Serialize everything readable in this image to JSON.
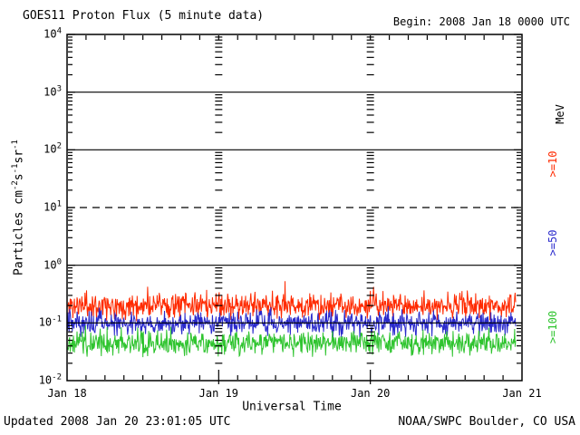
{
  "header": {
    "title": "GOES11 Proton Flux (5 minute data)",
    "begin_label": "Begin: 2008 Jan 18 0000 UTC"
  },
  "footer": {
    "updated": "Updated 2008 Jan 20 23:01:05 UTC",
    "credit": "NOAA/SWPC Boulder, CO USA"
  },
  "chart_data": {
    "type": "line",
    "scale": "log-y",
    "title": "GOES11 Proton Flux (5 minute data)",
    "subtitle": "Begin: 2008 Jan 18 0000 UTC",
    "xlabel": "Universal Time",
    "ylabel": "Particles cm-2 s-1 sr-1",
    "ylabel_parts": [
      [
        "Particles  cm",
        "-2"
      ],
      [
        "s",
        "-1"
      ],
      [
        "sr",
        "-1"
      ]
    ],
    "x_tick_labels": [
      "Jan 18",
      "Jan 19",
      "Jan 20",
      "Jan 21"
    ],
    "x_span_days": 3,
    "x_minor_ticks_per_day": 8,
    "x_minor_tick_hours": 3,
    "ylim_log10": [
      -2,
      4
    ],
    "y_tick_exponents": [
      4,
      3,
      2,
      1,
      0,
      -1,
      -2
    ],
    "solid_hlines_log10": [
      3,
      2,
      0,
      -1
    ],
    "dashed_hlines_log10": [
      1
    ],
    "day_boundary_dash_columns": [
      "Jan 19",
      "Jan 20"
    ],
    "cadence_minutes": 5,
    "data_end_hours": 71,
    "legend_unit": "MeV",
    "axis_color": "#000000",
    "series": [
      {
        "name": "Proton flux >=10 MeV",
        "label": ">=10",
        "color": "#FF2A00",
        "log10_mean": -0.7,
        "log10_amp": 0.32,
        "spike_prob": 0.03,
        "spike_max": 0.28,
        "clip_log10": [
          -1.05,
          -0.25
        ],
        "approx_flux_range": [
          0.1,
          0.55
        ],
        "seed": 11
      },
      {
        "name": "Proton flux >=50 MeV",
        "label": ">=50",
        "color": "#2A2ACC",
        "log10_mean": -1.0,
        "log10_amp": 0.3,
        "spike_prob": 0.02,
        "spike_max": 0.2,
        "clip_log10": [
          -1.35,
          -0.66
        ],
        "approx_flux_range": [
          0.05,
          0.22
        ],
        "seed": 52
      },
      {
        "name": "Proton flux >=100 MeV",
        "label": ">=100",
        "color": "#2FC42F",
        "log10_mean": -1.35,
        "log10_amp": 0.3,
        "spike_prob": 0.02,
        "spike_max": 0.18,
        "clip_log10": [
          -1.66,
          -0.98
        ],
        "approx_flux_range": [
          0.022,
          0.1
        ],
        "seed": 103
      }
    ]
  }
}
